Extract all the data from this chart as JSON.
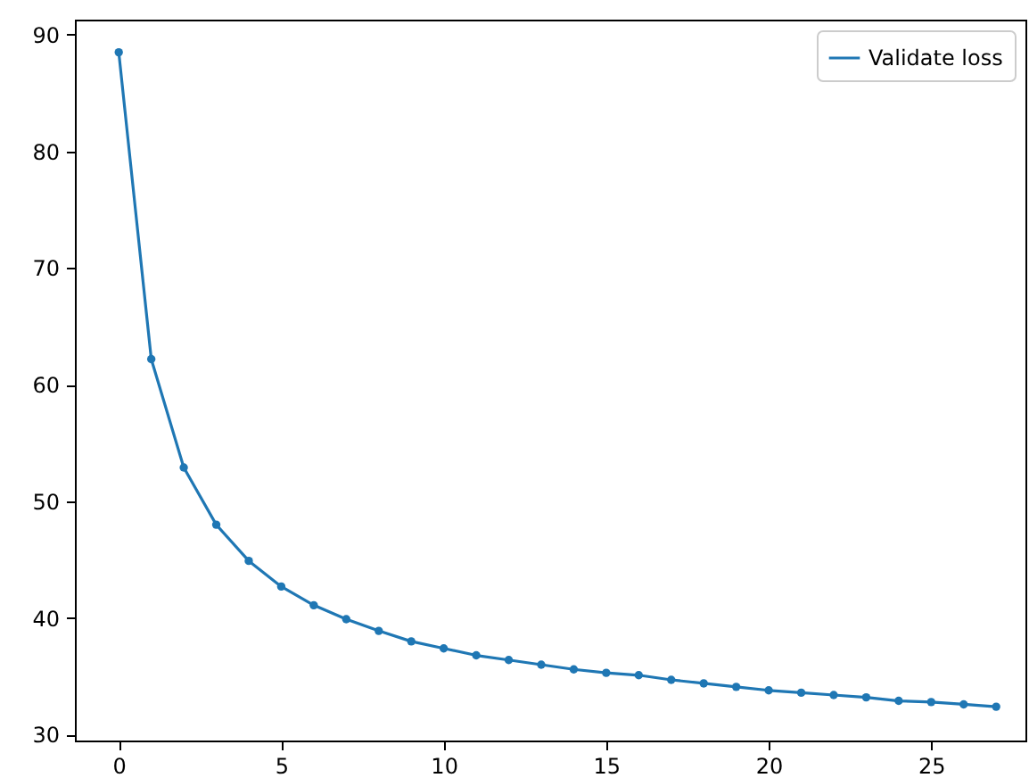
{
  "chart_data": {
    "type": "line",
    "x": [
      0,
      1,
      2,
      3,
      4,
      5,
      6,
      7,
      8,
      9,
      10,
      11,
      12,
      13,
      14,
      15,
      16,
      17,
      18,
      19,
      20,
      21,
      22,
      23,
      24,
      25,
      26,
      27
    ],
    "series": [
      {
        "name": "Validate loss",
        "color": "#1f77b4",
        "values": [
          88.5,
          62.2,
          52.9,
          48.0,
          44.9,
          42.7,
          41.1,
          39.9,
          38.9,
          38.0,
          37.4,
          36.8,
          36.4,
          36.0,
          35.6,
          35.3,
          35.1,
          34.7,
          34.4,
          34.1,
          33.8,
          33.6,
          33.4,
          33.2,
          32.9,
          32.8,
          32.6,
          32.4
        ]
      }
    ],
    "xlim": [
      -1.35,
      27.9
    ],
    "ylim": [
      29.5,
      91.3
    ],
    "xticks": [
      0,
      5,
      10,
      15,
      20,
      25
    ],
    "yticks": [
      30,
      40,
      50,
      60,
      70,
      80,
      90
    ],
    "legend": "top right",
    "marker": "circle",
    "line_style": "solid",
    "grid": false
  }
}
